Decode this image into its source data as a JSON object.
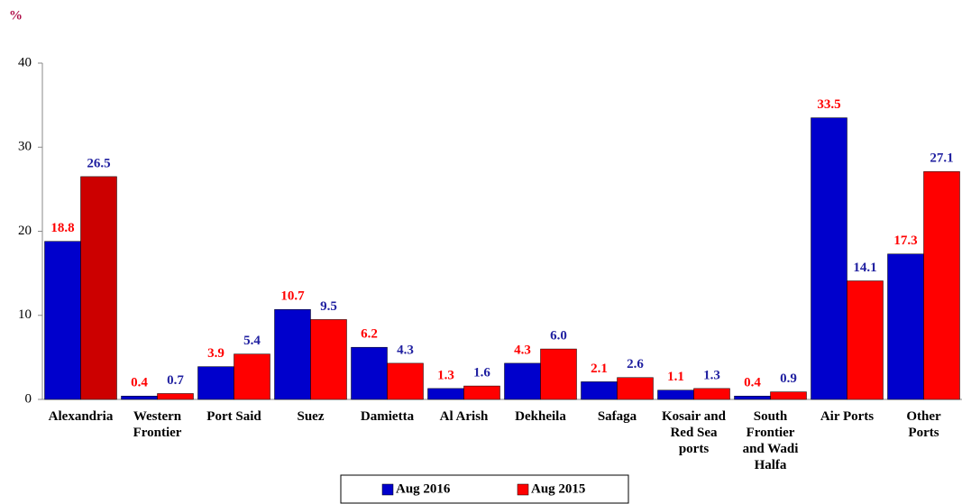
{
  "chart_data": {
    "type": "bar",
    "y_label": "%",
    "categories": [
      "Alexandria",
      "Western\nFrontier",
      "Port Said",
      "Suez",
      "Damietta",
      "Al Arish",
      "Dekheila",
      "Safaga",
      "Kosair and\nRed Sea\nports",
      "South\nFrontier\nand Wadi\nHalfa",
      "Air Ports",
      "Other\nPorts"
    ],
    "series": [
      {
        "name": "Aug 2016",
        "color": "#0000cc",
        "label_color": "#ff0000",
        "values": [
          18.8,
          0.4,
          3.9,
          10.7,
          6.2,
          1.3,
          4.3,
          2.1,
          1.1,
          0.4,
          33.5,
          17.3
        ]
      },
      {
        "name": "Aug 2015",
        "color": "#ff0000",
        "colors": [
          "#cc0000",
          "#ff0000",
          "#ff0000",
          "#ff0000",
          "#ff0000",
          "#ff0000",
          "#ff0000",
          "#ff0000",
          "#ff0000",
          "#ff0000",
          "#ff0000",
          "#ff0000"
        ],
        "label_color": "#1f1fa0",
        "values": [
          26.5,
          0.7,
          5.4,
          9.5,
          4.3,
          1.6,
          6.0,
          2.6,
          1.3,
          0.9,
          14.1,
          27.1
        ],
        "value_labels": [
          "26.5",
          "0.7",
          "5.4",
          "9.5",
          "4.3",
          "1.6",
          "6.0",
          "2.6",
          "1.3",
          "0.9",
          "14.1",
          "27.1"
        ]
      }
    ],
    "ylim": [
      0,
      40
    ],
    "yticks": [
      0,
      10,
      20,
      30,
      40
    ],
    "grid": false,
    "legend": "bottom"
  }
}
